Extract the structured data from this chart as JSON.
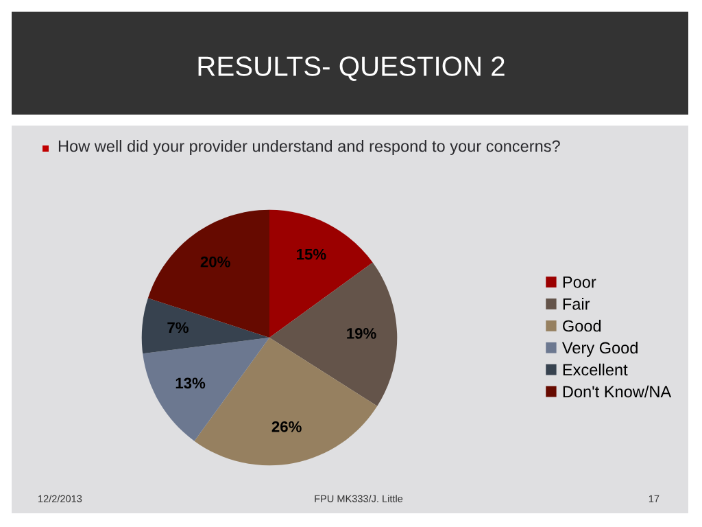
{
  "chart_data": {
    "type": "pie",
    "title": "RESULTS- QUESTION 2",
    "subtitle": "How well did your provider understand and respond to your concerns?",
    "categories": [
      "Poor",
      "Fair",
      "Good",
      "Very Good",
      "Excellent",
      "Don't Know/NA"
    ],
    "values": [
      15,
      19,
      26,
      13,
      7,
      20
    ],
    "colors": [
      "#9b0000",
      "#64544a",
      "#968060",
      "#6c7890",
      "#37424f",
      "#660a00"
    ],
    "value_labels": [
      "15%",
      "19%",
      "26%",
      "13%",
      "7%",
      "20%"
    ],
    "legend": "right",
    "annotations": [
      "12/2/2013",
      "FPU MK333/J. Little",
      "17"
    ]
  }
}
